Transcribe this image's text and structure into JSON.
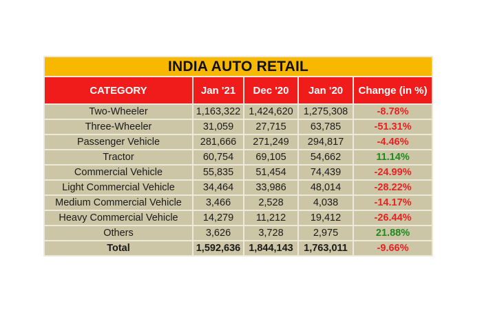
{
  "chart_data": {
    "type": "table",
    "title": "INDIA AUTO RETAIL",
    "columns": [
      "CATEGORY",
      "Jan '21",
      "Dec '20",
      "Jan '20",
      "Change (in %)"
    ],
    "rows": [
      {
        "category": "Two-Wheeler",
        "jan21": "1,163,322",
        "dec20": "1,424,620",
        "jan20": "1,275,308",
        "change": "-8.78%"
      },
      {
        "category": "Three-Wheeler",
        "jan21": "31,059",
        "dec20": "27,715",
        "jan20": "63,785",
        "change": "-51.31%"
      },
      {
        "category": "Passenger Vehicle",
        "jan21": "281,666",
        "dec20": "271,249",
        "jan20": "294,817",
        "change": "-4.46%"
      },
      {
        "category": "Tractor",
        "jan21": "60,754",
        "dec20": "69,105",
        "jan20": "54,662",
        "change": "11.14%"
      },
      {
        "category": "Commercial Vehicle",
        "jan21": "55,835",
        "dec20": "51,454",
        "jan20": "74,439",
        "change": "-24.99%"
      },
      {
        "category": "Light Commercial Vehicle",
        "jan21": "34,464",
        "dec20": "33,986",
        "jan20": "48,014",
        "change": "-28.22%"
      },
      {
        "category": "Medium Commercial Vehicle",
        "jan21": "3,466",
        "dec20": "2,528",
        "jan20": "4,038",
        "change": "-14.17%"
      },
      {
        "category": "Heavy Commercial Vehicle",
        "jan21": "14,279",
        "dec20": "11,212",
        "jan20": "19,412",
        "change": "-26.44%"
      },
      {
        "category": "Others",
        "jan21": "3,626",
        "dec20": "3,728",
        "jan20": "2,975",
        "change": "21.88%"
      }
    ],
    "total": {
      "category": "Total",
      "jan21": "1,592,636",
      "dec20": "1,844,143",
      "jan20": "1,763,011",
      "change": "-9.66%"
    }
  },
  "colors": {
    "title_bg": "#f8b800",
    "header_bg": "#f01c1c",
    "row_bg": "#cdc6a6",
    "negative": "#e62222",
    "positive": "#1e8a1e"
  }
}
